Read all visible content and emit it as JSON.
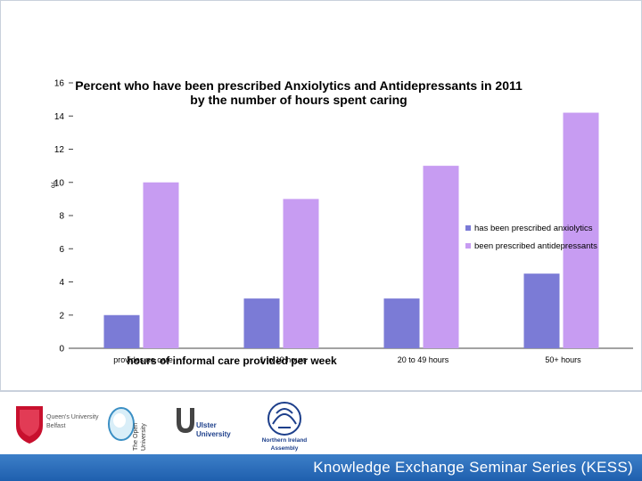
{
  "chart_data": {
    "type": "bar",
    "title_line1": "Percent who have been prescribed Anxiolytics and Antidepressants in 2011",
    "title_line2": "by the number of hours spent caring",
    "xlabel": "hours of informal care provided per week",
    "ylabel": "%",
    "ylim": [
      0,
      16
    ],
    "yticks": [
      "0",
      "2",
      "4",
      "6",
      "8",
      "10",
      "12",
      "14",
      "16"
    ],
    "categories": [
      "provides no care",
      "1 to 19 hours",
      "20 to 49 hours",
      "50+ hours"
    ],
    "series": [
      {
        "name": "has been prescribed anxiolytics",
        "values": [
          2,
          3,
          3,
          4.5
        ],
        "color": "#7b7bd6"
      },
      {
        "name": "been prescribed antidepressants",
        "values": [
          10,
          9,
          11,
          14.2
        ],
        "color": "#c79cf2"
      }
    ]
  },
  "logos": {
    "queens": [
      "Queen's University",
      "Belfast"
    ],
    "open": [
      "The Open",
      "University"
    ],
    "ulster": [
      "Ulster",
      "University"
    ],
    "ni": [
      "Northern Ireland",
      "Assembly"
    ]
  },
  "footer": {
    "text": "Knowledge Exchange Seminar Series (KESS)",
    "color": "#2a6cbd"
  }
}
